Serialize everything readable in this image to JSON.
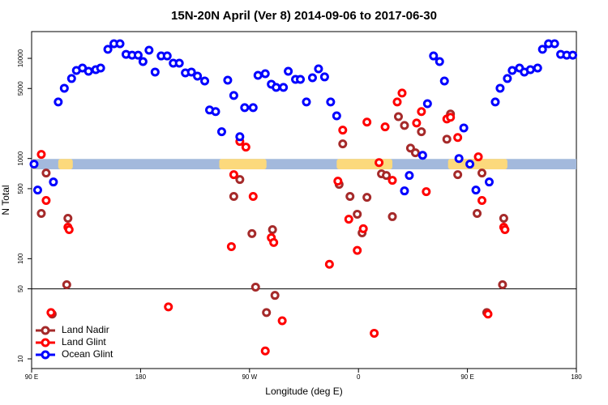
{
  "chart_data": {
    "type": "scatter",
    "title": "15N-20N April (Ver 8)   2014-09-06 to 2017-06-30",
    "x_label": "Longitude (deg E)",
    "y_label": "N Total",
    "log_y": true,
    "xlim": [
      -270,
      180
    ],
    "ylim": [
      8,
      18500
    ],
    "xticks": [
      {
        "value": -270,
        "label": "90 E"
      },
      {
        "value": -180,
        "label": "180"
      },
      {
        "value": -90,
        "label": "90 W"
      },
      0,
      {
        "value": 90,
        "label": "90 E"
      },
      180
    ],
    "yticks": [
      10,
      50,
      100,
      500,
      1000,
      5000,
      10000
    ],
    "hline": 50,
    "band": {
      "range": [
        780,
        990
      ],
      "color": "#a3b9dc",
      "land_color": "#fcd97c",
      "land": [
        [
          -270,
          -266
        ],
        [
          -248,
          -236
        ],
        [
          -115,
          -76
        ],
        [
          -18,
          28
        ],
        [
          74,
          123
        ]
      ]
    },
    "legend": "lower left",
    "series": [
      {
        "name": "Land Nadir",
        "color": "#a52a2a",
        "x": [
          -262,
          -258,
          -253,
          -240,
          -241,
          -103,
          -98,
          -88,
          -85,
          -76,
          -71,
          -69,
          -13,
          -16,
          -7,
          -1,
          3,
          7,
          19,
          23,
          28,
          33,
          38,
          43,
          47,
          52,
          73,
          76,
          82,
          98,
          102,
          106,
          120,
          119
        ],
        "values": [
          283,
          716,
          28,
          253,
          55,
          418,
          617,
          178,
          52,
          29,
          195,
          43,
          1400,
          552,
          418,
          278,
          181,
          410,
          703,
          677,
          263,
          2620,
          2140,
          1270,
          1140,
          1850,
          1560,
          2780,
          690,
          283,
          716,
          29,
          253,
          55
        ]
      },
      {
        "name": "Land Glint",
        "color": "#ff0000",
        "x": [
          -262,
          -258,
          -254,
          -240,
          -239,
          -157,
          -105,
          -103,
          -98,
          -93,
          -87,
          -77,
          -72,
          -70,
          -63,
          -24,
          -17,
          -13,
          -8,
          -1,
          4,
          7,
          13,
          17,
          22,
          28,
          32,
          36,
          48,
          52,
          56,
          73,
          76,
          82,
          99,
          102,
          107,
          120,
          121
        ],
        "values": [
          1100,
          381,
          29,
          206,
          195,
          33,
          132,
          690,
          1480,
          1300,
          418,
          12,
          162,
          145,
          24,
          88,
          594,
          1920,
          248,
          121,
          199,
          2310,
          18,
          911,
          2070,
          606,
          3670,
          4500,
          2260,
          2940,
          467,
          2480,
          2580,
          1620,
          1040,
          381,
          28,
          206,
          195
        ]
      },
      {
        "name": "Ocean Glint",
        "color": "#0000ff",
        "x": [
          -268,
          -265,
          -252,
          -248,
          -243,
          -237,
          -233,
          -228,
          -223,
          -217,
          -213,
          -207,
          -202,
          -197,
          -192,
          -187,
          -182,
          -178,
          -173,
          -168,
          -163,
          -158,
          -153,
          -148,
          -143,
          -138,
          -133,
          -127,
          -123,
          -118,
          -113,
          -108,
          -103,
          -98,
          -94,
          -87,
          -83,
          -77,
          -72,
          -68,
          -62,
          -58,
          -52,
          -48,
          -43,
          -38,
          -33,
          -28,
          -23,
          -18,
          38,
          42,
          53,
          57,
          62,
          67,
          71,
          83,
          87,
          92,
          97,
          108,
          113,
          117,
          123,
          127,
          133,
          137,
          142,
          148,
          152,
          157,
          162,
          167,
          172,
          177
        ],
        "values": [
          879,
          484,
          583,
          3670,
          5030,
          6290,
          7570,
          8000,
          7430,
          7710,
          8000,
          12300,
          14000,
          14000,
          10970,
          10760,
          10760,
          9290,
          12050,
          7300,
          10570,
          10570,
          8950,
          8950,
          7160,
          7300,
          6650,
          5940,
          3050,
          2940,
          1850,
          6050,
          4260,
          1650,
          3220,
          3220,
          6770,
          7030,
          5520,
          5130,
          5130,
          7430,
          6170,
          6170,
          3670,
          6400,
          7860,
          6530,
          3670,
          2670,
          475,
          677,
          1077,
          3530,
          10570,
          9290,
          5940,
          1000,
          2020,
          879,
          484,
          583,
          3670,
          5030,
          6290,
          7570,
          8000,
          7300,
          7710,
          8000,
          12300,
          14000,
          14000,
          10970,
          10760,
          10760
        ]
      }
    ]
  }
}
